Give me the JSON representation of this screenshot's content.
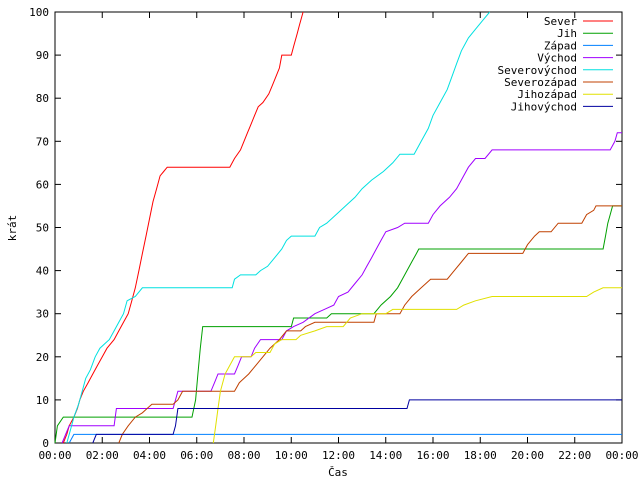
{
  "chart_data": {
    "type": "line",
    "xlabel": "Čas",
    "ylabel": "krát",
    "xlim": [
      0,
      24
    ],
    "ylim": [
      0,
      100
    ],
    "grid": false,
    "legend_position": "top-right",
    "x_ticks": [
      0,
      2,
      4,
      6,
      8,
      10,
      12,
      14,
      16,
      18,
      20,
      22,
      24
    ],
    "x_tick_labels": [
      "00:00",
      "02:00",
      "04:00",
      "06:00",
      "08:00",
      "10:00",
      "12:00",
      "14:00",
      "16:00",
      "18:00",
      "20:00",
      "22:00",
      "00:00"
    ],
    "y_ticks": [
      0,
      10,
      20,
      30,
      40,
      50,
      60,
      70,
      80,
      90,
      100
    ],
    "y_tick_labels": [
      "0",
      "10",
      "20",
      "30",
      "40",
      "50",
      "60",
      "70",
      "80",
      "90",
      "100"
    ],
    "series": [
      {
        "name": "Sever",
        "color": "#ff0000",
        "points": [
          [
            0.35,
            0
          ],
          [
            0.5,
            2
          ],
          [
            0.6,
            4
          ],
          [
            0.8,
            6
          ],
          [
            0.95,
            8
          ],
          [
            1.05,
            10
          ],
          [
            1.2,
            12
          ],
          [
            1.4,
            14
          ],
          [
            1.6,
            16
          ],
          [
            1.8,
            18
          ],
          [
            2.0,
            20
          ],
          [
            2.2,
            22
          ],
          [
            2.5,
            24
          ],
          [
            2.7,
            26
          ],
          [
            2.9,
            28
          ],
          [
            3.1,
            30
          ],
          [
            3.25,
            33
          ],
          [
            3.4,
            36
          ],
          [
            3.55,
            40
          ],
          [
            3.7,
            44
          ],
          [
            3.85,
            48
          ],
          [
            4.0,
            52
          ],
          [
            4.15,
            56
          ],
          [
            4.3,
            59
          ],
          [
            4.45,
            62
          ],
          [
            4.6,
            63
          ],
          [
            4.75,
            64
          ],
          [
            7.4,
            64
          ],
          [
            7.6,
            66
          ],
          [
            7.85,
            68
          ],
          [
            8.0,
            70
          ],
          [
            8.15,
            72
          ],
          [
            8.3,
            74
          ],
          [
            8.45,
            76
          ],
          [
            8.6,
            78
          ],
          [
            8.8,
            79
          ],
          [
            9.05,
            81
          ],
          [
            9.2,
            83
          ],
          [
            9.35,
            85
          ],
          [
            9.5,
            87
          ],
          [
            9.6,
            90
          ],
          [
            10.0,
            90
          ],
          [
            10.1,
            92
          ],
          [
            10.25,
            95
          ],
          [
            10.35,
            97
          ],
          [
            10.5,
            100
          ]
        ]
      },
      {
        "name": "Jih",
        "color": "#00a000",
        "points": [
          [
            0.0,
            0
          ],
          [
            0.1,
            4
          ],
          [
            0.35,
            6
          ],
          [
            5.8,
            6
          ],
          [
            5.95,
            10
          ],
          [
            6.05,
            16
          ],
          [
            6.15,
            22
          ],
          [
            6.25,
            27
          ],
          [
            10.0,
            27
          ],
          [
            10.1,
            29
          ],
          [
            11.5,
            29
          ],
          [
            11.7,
            30
          ],
          [
            13.5,
            30
          ],
          [
            13.8,
            32
          ],
          [
            14.2,
            34
          ],
          [
            14.5,
            36
          ],
          [
            14.7,
            38
          ],
          [
            14.9,
            40
          ],
          [
            15.1,
            42
          ],
          [
            15.3,
            44
          ],
          [
            15.4,
            45
          ],
          [
            23.2,
            45
          ],
          [
            23.3,
            48
          ],
          [
            23.4,
            51
          ],
          [
            23.5,
            53
          ],
          [
            23.6,
            55
          ],
          [
            24,
            55
          ]
        ]
      },
      {
        "name": "Západ",
        "color": "#0080ff",
        "points": [
          [
            0.6,
            0
          ],
          [
            0.8,
            2
          ],
          [
            24,
            2
          ]
        ]
      },
      {
        "name": "Východ",
        "color": "#a000ff",
        "points": [
          [
            0.3,
            0
          ],
          [
            0.45,
            2
          ],
          [
            0.6,
            4
          ],
          [
            2.5,
            4
          ],
          [
            2.6,
            8
          ],
          [
            5.0,
            8
          ],
          [
            5.2,
            12
          ],
          [
            6.6,
            12
          ],
          [
            6.75,
            14
          ],
          [
            6.9,
            16
          ],
          [
            7.6,
            16
          ],
          [
            7.75,
            18
          ],
          [
            7.9,
            20
          ],
          [
            8.3,
            20
          ],
          [
            8.45,
            22
          ],
          [
            8.7,
            24
          ],
          [
            9.6,
            24
          ],
          [
            9.8,
            26
          ],
          [
            10.1,
            27
          ],
          [
            10.5,
            28
          ],
          [
            11.0,
            30
          ],
          [
            11.4,
            31
          ],
          [
            11.8,
            32
          ],
          [
            12.0,
            34
          ],
          [
            12.4,
            35
          ],
          [
            12.7,
            37
          ],
          [
            13.0,
            39
          ],
          [
            13.2,
            41
          ],
          [
            13.4,
            43
          ],
          [
            13.6,
            45
          ],
          [
            13.8,
            47
          ],
          [
            14.0,
            49
          ],
          [
            14.5,
            50
          ],
          [
            14.8,
            51
          ],
          [
            15.8,
            51
          ],
          [
            16.0,
            53
          ],
          [
            16.3,
            55
          ],
          [
            16.7,
            57
          ],
          [
            17.0,
            59
          ],
          [
            17.3,
            62
          ],
          [
            17.5,
            64
          ],
          [
            17.8,
            66
          ],
          [
            18.2,
            66
          ],
          [
            18.5,
            68
          ],
          [
            23.5,
            68
          ],
          [
            23.7,
            70
          ],
          [
            23.8,
            72
          ],
          [
            24,
            72
          ]
        ]
      },
      {
        "name": "Severovýchod",
        "color": "#00e0e0",
        "points": [
          [
            0.5,
            0
          ],
          [
            0.65,
            3
          ],
          [
            0.8,
            6
          ],
          [
            1.0,
            9
          ],
          [
            1.15,
            12
          ],
          [
            1.3,
            15
          ],
          [
            1.5,
            17
          ],
          [
            1.7,
            20
          ],
          [
            1.9,
            22
          ],
          [
            2.1,
            23
          ],
          [
            2.3,
            24
          ],
          [
            2.5,
            26
          ],
          [
            2.7,
            28
          ],
          [
            2.9,
            30
          ],
          [
            3.05,
            33
          ],
          [
            3.4,
            34
          ],
          [
            3.7,
            36
          ],
          [
            7.5,
            36
          ],
          [
            7.6,
            38
          ],
          [
            7.85,
            39
          ],
          [
            8.5,
            39
          ],
          [
            8.7,
            40
          ],
          [
            9.0,
            41
          ],
          [
            9.3,
            43
          ],
          [
            9.6,
            45
          ],
          [
            9.8,
            47
          ],
          [
            10.0,
            48
          ],
          [
            11.0,
            48
          ],
          [
            11.2,
            50
          ],
          [
            11.5,
            51
          ],
          [
            11.9,
            53
          ],
          [
            12.3,
            55
          ],
          [
            12.7,
            57
          ],
          [
            13.0,
            59
          ],
          [
            13.4,
            61
          ],
          [
            13.9,
            63
          ],
          [
            14.3,
            65
          ],
          [
            14.6,
            67
          ],
          [
            15.2,
            67
          ],
          [
            15.5,
            70
          ],
          [
            15.8,
            73
          ],
          [
            16.0,
            76
          ],
          [
            16.3,
            79
          ],
          [
            16.6,
            82
          ],
          [
            16.8,
            85
          ],
          [
            17.0,
            88
          ],
          [
            17.2,
            91
          ],
          [
            17.5,
            94
          ],
          [
            17.8,
            96
          ],
          [
            18.1,
            98
          ],
          [
            18.4,
            100
          ]
        ]
      },
      {
        "name": "Severozápad",
        "color": "#c04000",
        "points": [
          [
            2.7,
            0
          ],
          [
            2.85,
            2
          ],
          [
            3.1,
            4
          ],
          [
            3.4,
            6
          ],
          [
            3.7,
            7
          ],
          [
            3.9,
            8
          ],
          [
            4.1,
            9
          ],
          [
            5.0,
            9
          ],
          [
            5.2,
            10
          ],
          [
            5.4,
            12
          ],
          [
            7.6,
            12
          ],
          [
            7.8,
            14
          ],
          [
            8.2,
            16
          ],
          [
            8.5,
            18
          ],
          [
            8.8,
            20
          ],
          [
            9.1,
            22
          ],
          [
            9.5,
            24
          ],
          [
            9.8,
            26
          ],
          [
            10.4,
            26
          ],
          [
            10.6,
            27
          ],
          [
            11.0,
            28
          ],
          [
            13.5,
            28
          ],
          [
            13.6,
            30
          ],
          [
            14.6,
            30
          ],
          [
            14.8,
            32
          ],
          [
            15.1,
            34
          ],
          [
            15.5,
            36
          ],
          [
            15.9,
            38
          ],
          [
            16.6,
            38
          ],
          [
            16.9,
            40
          ],
          [
            17.2,
            42
          ],
          [
            17.5,
            44
          ],
          [
            19.8,
            44
          ],
          [
            20.0,
            46
          ],
          [
            20.3,
            48
          ],
          [
            20.5,
            49
          ],
          [
            21.0,
            49
          ],
          [
            21.3,
            51
          ],
          [
            22.3,
            51
          ],
          [
            22.5,
            53
          ],
          [
            22.8,
            54
          ],
          [
            22.9,
            55
          ],
          [
            24,
            55
          ]
        ]
      },
      {
        "name": "Jihozápad",
        "color": "#e0e000",
        "points": [
          [
            6.7,
            0
          ],
          [
            6.8,
            4
          ],
          [
            6.9,
            8
          ],
          [
            7.0,
            12
          ],
          [
            7.2,
            16
          ],
          [
            7.4,
            18
          ],
          [
            7.6,
            20
          ],
          [
            8.3,
            20
          ],
          [
            8.5,
            21
          ],
          [
            9.1,
            21
          ],
          [
            9.3,
            23
          ],
          [
            9.6,
            24
          ],
          [
            10.2,
            24
          ],
          [
            10.4,
            25
          ],
          [
            11.0,
            26
          ],
          [
            11.5,
            27
          ],
          [
            12.2,
            27
          ],
          [
            12.5,
            29
          ],
          [
            13.0,
            30
          ],
          [
            14.0,
            30
          ],
          [
            14.3,
            31
          ],
          [
            17.0,
            31
          ],
          [
            17.3,
            32
          ],
          [
            17.8,
            33
          ],
          [
            18.5,
            34
          ],
          [
            22.5,
            34
          ],
          [
            22.8,
            35
          ],
          [
            23.2,
            36
          ],
          [
            24,
            36
          ]
        ]
      },
      {
        "name": "Jihovýchod",
        "color": "#0000a0",
        "points": [
          [
            1.6,
            0
          ],
          [
            1.75,
            2
          ],
          [
            5.0,
            2
          ],
          [
            5.1,
            4
          ],
          [
            5.2,
            8
          ],
          [
            14.9,
            8
          ],
          [
            15.0,
            10
          ],
          [
            24,
            10
          ]
        ]
      }
    ]
  }
}
